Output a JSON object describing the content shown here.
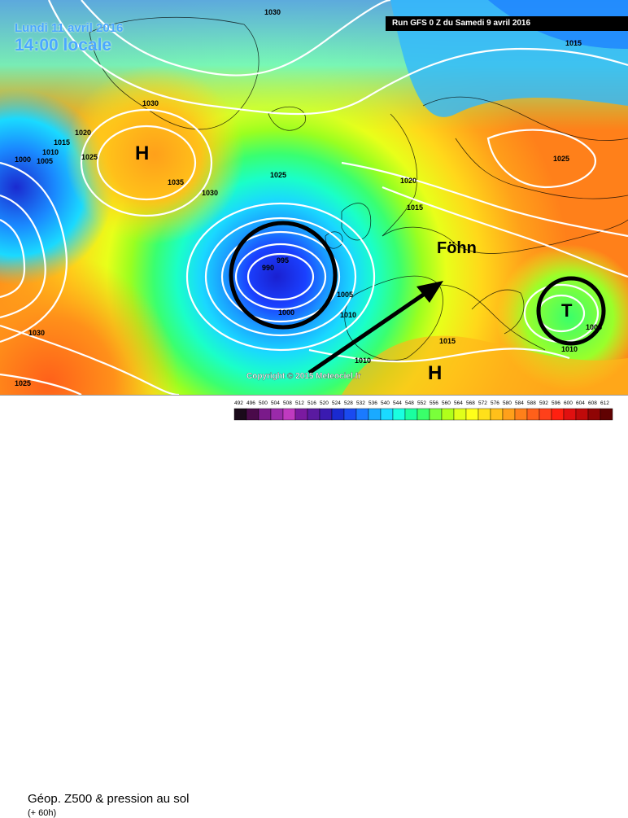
{
  "header": {
    "date": "Lundi 11 avril 2016",
    "time": "14:00 locale",
    "run": "Run GFS 0 Z du Samedi 9 avril 2016"
  },
  "annotations": {
    "high_west": "H",
    "high_south": "H",
    "low_east": "T",
    "foehn": "Föhn",
    "copyright": "Copyright © 2015 Meteociel.fr"
  },
  "isobar_labels": [
    "1030",
    "1015",
    "1030",
    "1020",
    "1010",
    "1015",
    "1025",
    "1000",
    "1005",
    "H",
    "1035",
    "1030",
    "1025",
    "1020",
    "1015",
    "995",
    "990",
    "1005",
    "1000",
    "1010",
    "1015",
    "1010",
    "1025",
    "1005",
    "1010",
    "1030",
    "1025"
  ],
  "legend": {
    "title": "Géop. Z500 & pression au sol",
    "subtitle": "(+ 60h)",
    "scale": [
      "492",
      "496",
      "500",
      "504",
      "508",
      "512",
      "516",
      "520",
      "524",
      "528",
      "532",
      "536",
      "540",
      "544",
      "548",
      "552",
      "556",
      "560",
      "564",
      "568",
      "572",
      "576",
      "580",
      "584",
      "588",
      "592",
      "596",
      "600",
      "604",
      "608",
      "612"
    ],
    "colors": [
      "#1a0a1a",
      "#4a0a4a",
      "#7a1a8a",
      "#9a2aaa",
      "#c03ac0",
      "#7a1aa0",
      "#5a1aa0",
      "#3a1ab0",
      "#1a2ad0",
      "#1a4af0",
      "#1a7aff",
      "#1aaaff",
      "#1adaff",
      "#1affe0",
      "#1affa0",
      "#3aff6a",
      "#7aff3a",
      "#b0ff1a",
      "#e0ff1a",
      "#ffff1a",
      "#ffe01a",
      "#ffc01a",
      "#ffa01a",
      "#ff801a",
      "#ff601a",
      "#ff401a",
      "#ff2010",
      "#e01010",
      "#c00a0a",
      "#900505",
      "#600202"
    ]
  }
}
